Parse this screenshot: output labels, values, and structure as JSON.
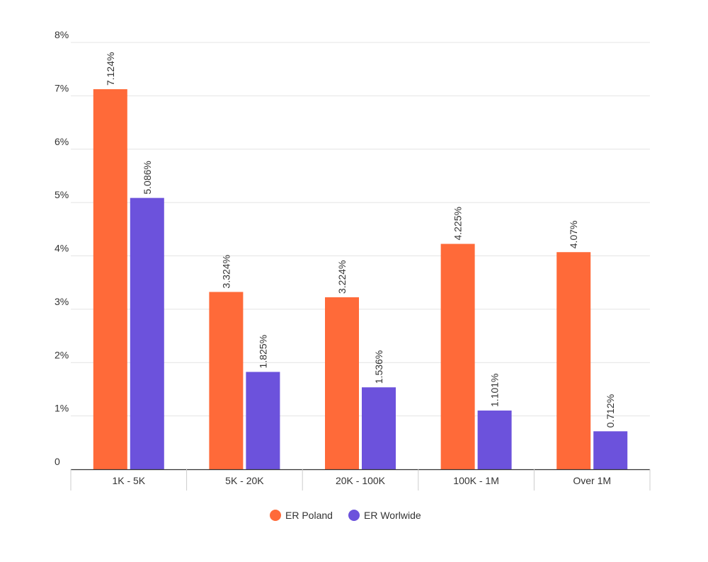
{
  "chart_data": {
    "type": "bar",
    "title": "",
    "xlabel": "",
    "ylabel": "",
    "categories": [
      "1K - 5K",
      "5K - 20K",
      "20K - 100K",
      "100K - 1M",
      "Over 1M"
    ],
    "series": [
      {
        "name": "ER Poland",
        "color": "#FF6A39",
        "values": [
          7.124,
          3.324,
          3.224,
          4.225,
          4.07
        ],
        "labels": [
          "7.124%",
          "3.324%",
          "3.224%",
          "4.225%",
          "4.07%"
        ]
      },
      {
        "name": "ER Worlwide",
        "color": "#6C52DC",
        "values": [
          5.086,
          1.825,
          1.536,
          1.101,
          0.712
        ],
        "labels": [
          "5.086%",
          "1.825%",
          "1.536%",
          "1.101%",
          "0.712%"
        ]
      }
    ],
    "ylim": [
      0,
      8
    ],
    "yticks": [
      0,
      1,
      2,
      3,
      4,
      5,
      6,
      7,
      8
    ],
    "ytick_labels": [
      "0",
      "1%",
      "2%",
      "3%",
      "4%",
      "5%",
      "6%",
      "7%",
      "8%"
    ],
    "grid": true,
    "legend_position": "bottom-center"
  }
}
